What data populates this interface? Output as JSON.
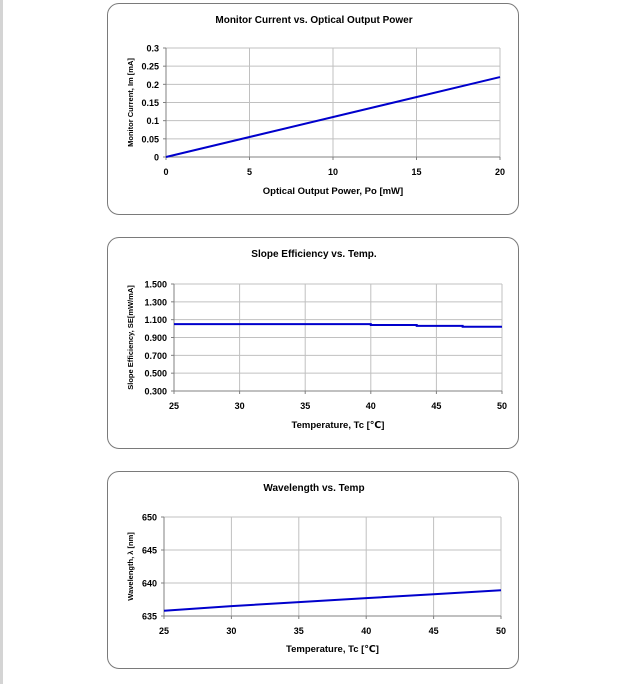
{
  "chart_data": [
    {
      "type": "line",
      "title": "Monitor Current vs. Optical Output Power",
      "xlabel": "Optical Output Power, Po [mW]",
      "ylabel": "Monitor Current, Im [mA]",
      "xlim": [
        0,
        20
      ],
      "ylim": [
        0,
        0.3
      ],
      "xticks": [
        0,
        5,
        10,
        15,
        20
      ],
      "yticks": [
        0,
        0.05,
        0.1,
        0.15,
        0.2,
        0.25,
        0.3
      ],
      "xtick_labels": [
        "0",
        "5",
        "10",
        "15",
        "20"
      ],
      "ytick_labels": [
        "0",
        "0.05",
        "0.1",
        "0.15",
        "0.2",
        "0.25",
        "0.3"
      ],
      "grid": true,
      "series": [
        {
          "color": "#0000cc",
          "x": [
            0,
            20
          ],
          "y": [
            0,
            0.22
          ]
        }
      ]
    },
    {
      "type": "line",
      "title": "Slope Efficiency vs. Temp.",
      "xlabel": "Temperature, Tc [℃]",
      "ylabel": "Slope Efficiency, SE[mW/mA]",
      "xlim": [
        25,
        50
      ],
      "ylim": [
        0.3,
        1.5
      ],
      "xticks": [
        25,
        30,
        35,
        40,
        45,
        50
      ],
      "yticks": [
        0.3,
        0.5,
        0.7,
        0.9,
        1.1,
        1.3,
        1.5
      ],
      "xtick_labels": [
        "25",
        "30",
        "35",
        "40",
        "45",
        "50"
      ],
      "ytick_labels": [
        "0.300",
        "0.500",
        "0.700",
        "0.900",
        "1.100",
        "1.300",
        "1.500"
      ],
      "grid": true,
      "series": [
        {
          "color": "#0000cc",
          "x": [
            25,
            40,
            40,
            43.5,
            43.5,
            47,
            47,
            50
          ],
          "y": [
            1.05,
            1.05,
            1.04,
            1.04,
            1.03,
            1.03,
            1.02,
            1.02
          ]
        }
      ]
    },
    {
      "type": "line",
      "title": "Wavelength vs. Temp",
      "xlabel": "Temperature, Tc [℃]",
      "ylabel": "Wavelength, λ [nm]",
      "xlim": [
        25,
        50
      ],
      "ylim": [
        635,
        650
      ],
      "xticks": [
        25,
        30,
        35,
        40,
        45,
        50
      ],
      "yticks": [
        635,
        640,
        645,
        650
      ],
      "xtick_labels": [
        "25",
        "30",
        "35",
        "40",
        "45",
        "50"
      ],
      "ytick_labels": [
        "635",
        "640",
        "645",
        "650"
      ],
      "grid": true,
      "series": [
        {
          "color": "#0000cc",
          "x": [
            25,
            30,
            35,
            40,
            45,
            50
          ],
          "y": [
            635.8,
            636.5,
            637.1,
            637.7,
            638.3,
            638.9
          ]
        }
      ]
    }
  ]
}
